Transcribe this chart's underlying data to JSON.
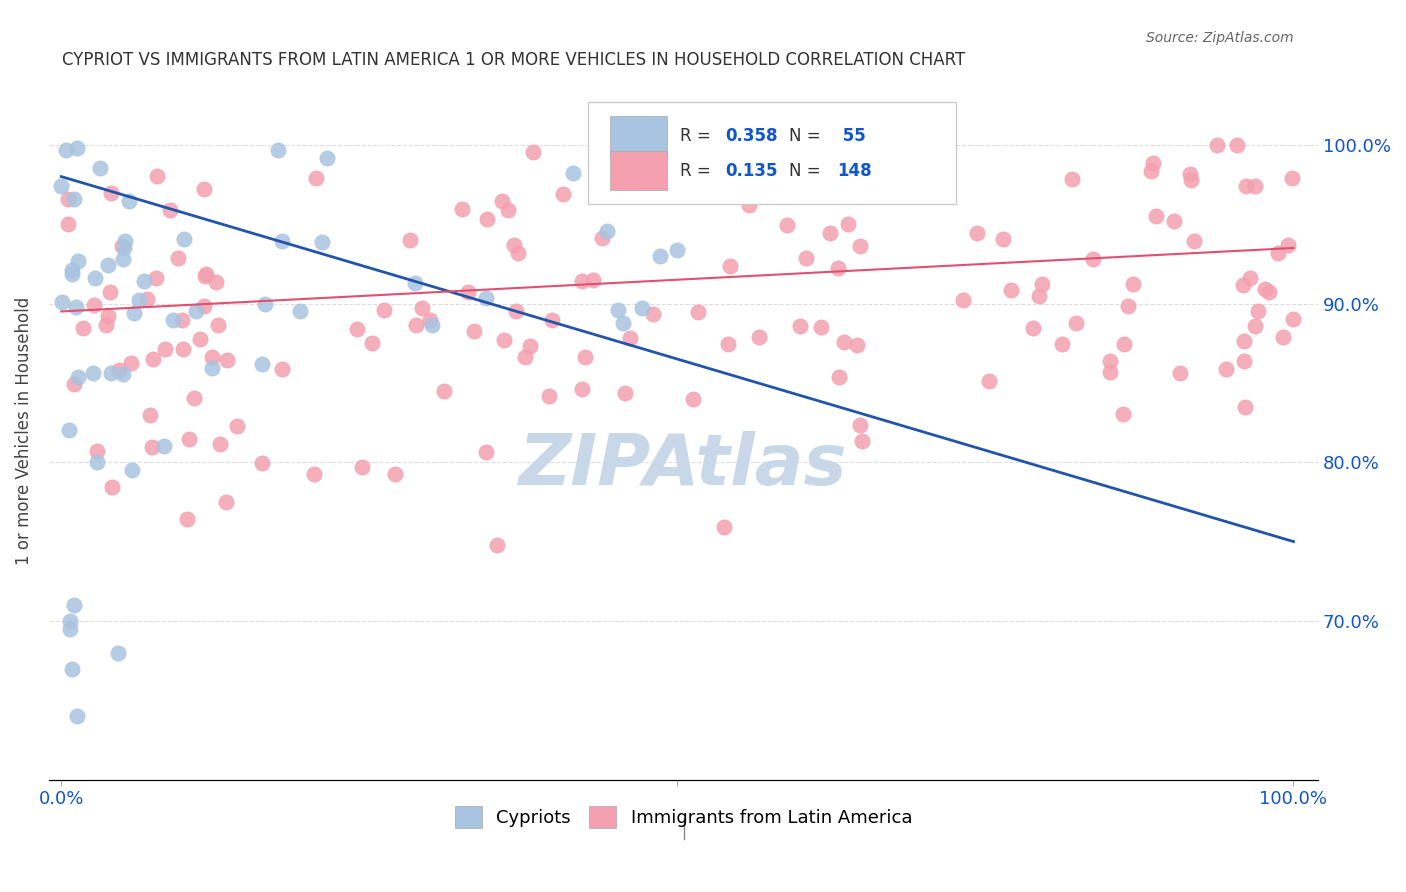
{
  "title": "CYPRIOT VS IMMIGRANTS FROM LATIN AMERICA 1 OR MORE VEHICLES IN HOUSEHOLD CORRELATION CHART",
  "source": "Source: ZipAtlas.com",
  "ylabel": "1 or more Vehicles in Household",
  "legend_label1": "Cypriots",
  "legend_label2": "Immigrants from Latin America",
  "R1": "0.358",
  "N1": "55",
  "R2": "0.135",
  "N2": "148",
  "blue_color": "#a8c4e0",
  "pink_color": "#f4a0b0",
  "blue_line_color": "#2255aa",
  "pink_line_color": "#e05070",
  "title_color": "#333333",
  "axis_label_color": "#1155cc",
  "watermark_color": "#c8d8e8",
  "grid_color": "#dddddd"
}
